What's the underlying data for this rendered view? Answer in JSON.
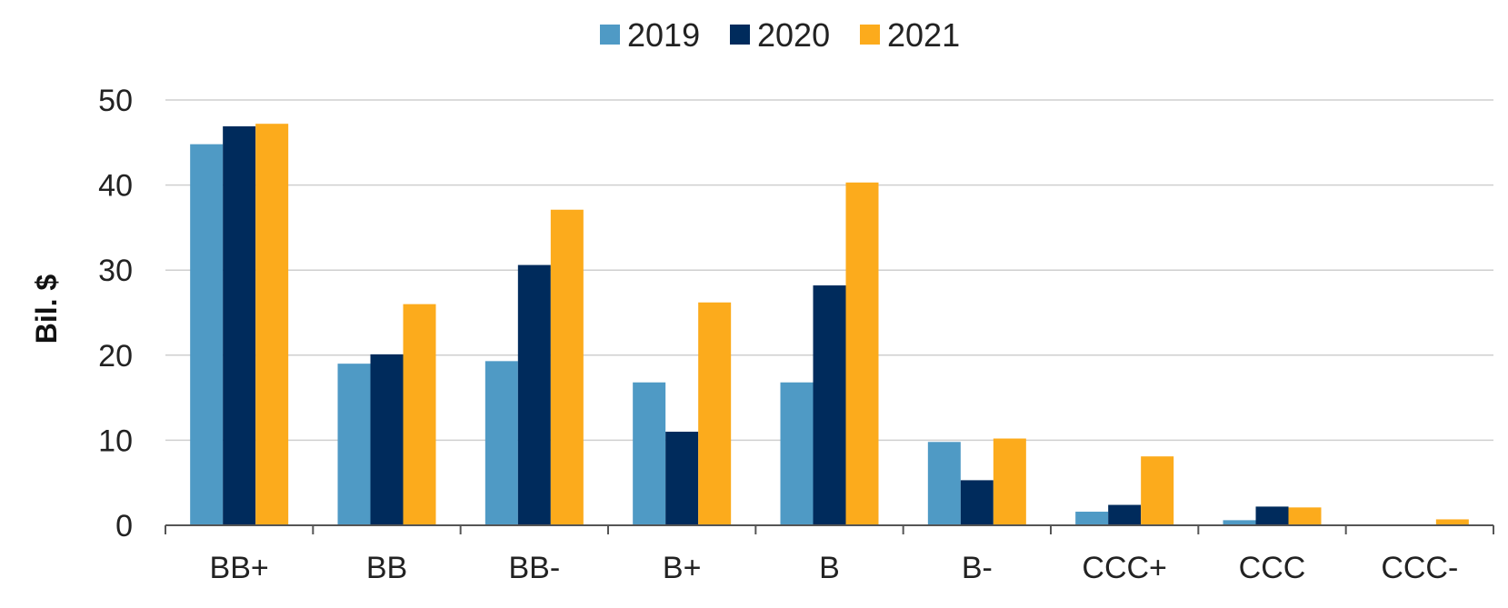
{
  "chart_data": {
    "type": "bar",
    "categories": [
      "BB+",
      "BB",
      "BB-",
      "B+",
      "B",
      "B-",
      "CCC+",
      "CCC",
      "CCC-"
    ],
    "series": [
      {
        "name": "2019",
        "color": "#4f9ac5",
        "values": [
          44.8,
          19.0,
          19.3,
          16.8,
          16.8,
          9.8,
          1.6,
          0.6,
          0
        ]
      },
      {
        "name": "2020",
        "color": "#002b5c",
        "values": [
          46.9,
          20.1,
          30.6,
          11.0,
          28.2,
          5.3,
          2.4,
          2.2,
          0
        ]
      },
      {
        "name": "2021",
        "color": "#fcab1c",
        "values": [
          47.2,
          26.0,
          37.1,
          26.2,
          40.3,
          10.2,
          8.1,
          2.1,
          0.7
        ]
      }
    ],
    "ylabel": "Bil. $",
    "ylim": [
      0,
      50
    ],
    "yticks": [
      0,
      10,
      20,
      30,
      40,
      50
    ],
    "grid": true,
    "legend": "top-center"
  }
}
